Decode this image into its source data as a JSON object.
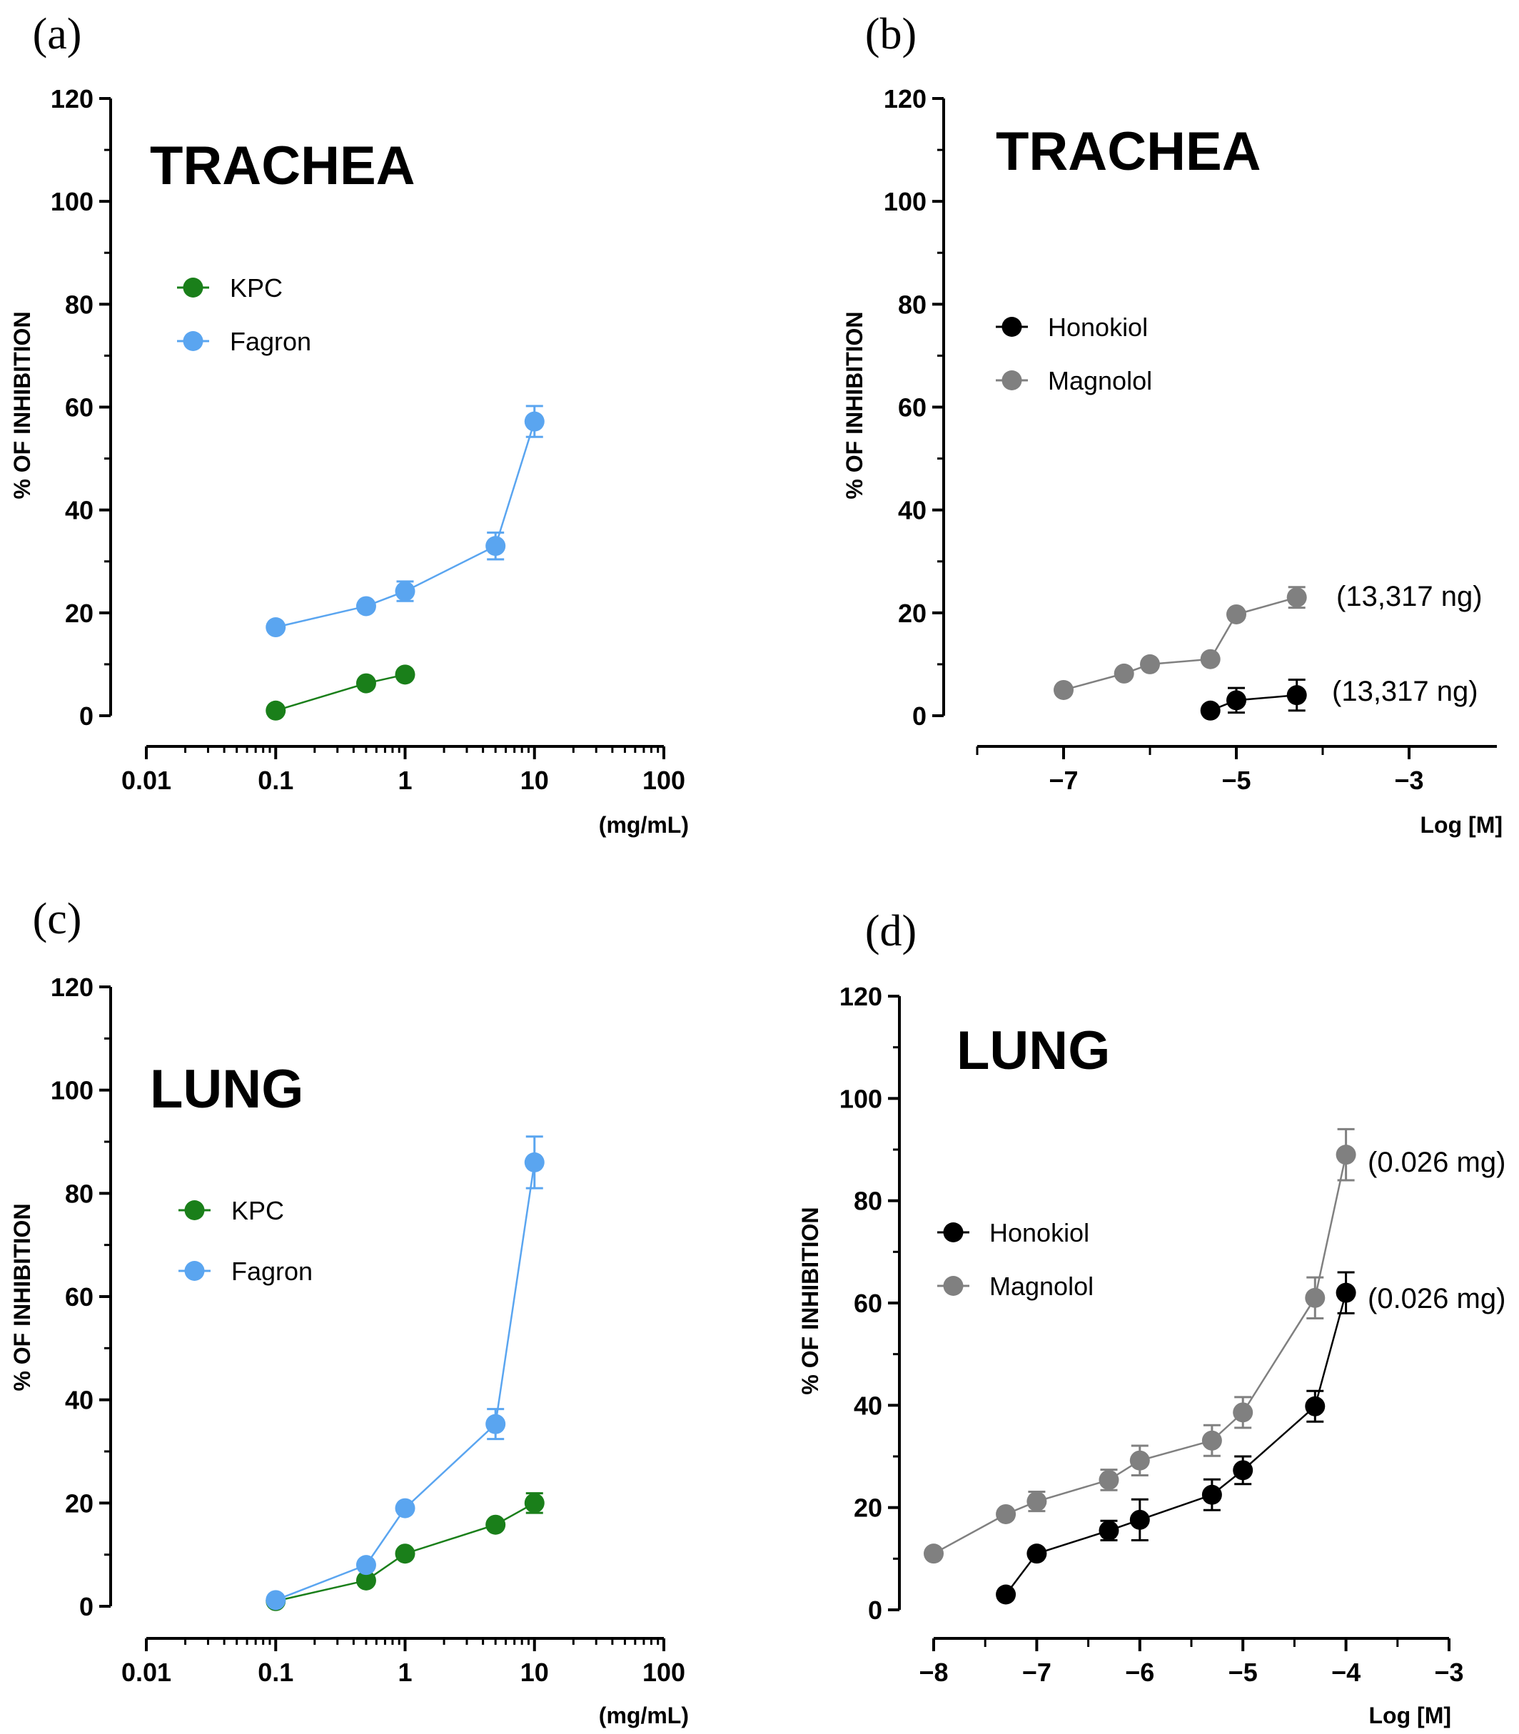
{
  "chart_data": [
    {
      "panel": "(a)",
      "type": "line",
      "title": "TRACHEA",
      "xlabel": "(mg/mL)",
      "ylabel": "% OF INHIBITION",
      "xscale": "log",
      "xlim": [
        0.01,
        100
      ],
      "ylim": [
        0,
        120
      ],
      "xticks": [
        0.01,
        0.1,
        1,
        10,
        100
      ],
      "xtick_labels": [
        "0.01",
        "0.1",
        "1",
        "10",
        "100"
      ],
      "yticks": [
        0,
        20,
        40,
        60,
        80,
        100,
        120
      ],
      "grid": false,
      "legend": "upper-left",
      "series": [
        {
          "name": "KPC",
          "color": "#1a7f1a",
          "x": [
            0.1,
            0.5,
            1
          ],
          "y": [
            1,
            6.3,
            8
          ],
          "err": [
            0,
            0,
            0
          ]
        },
        {
          "name": "Fagron",
          "color": "#5aa5f0",
          "x": [
            0.1,
            0.5,
            1,
            5,
            10
          ],
          "y": [
            17.2,
            21.3,
            24.2,
            33,
            57.2
          ],
          "err": [
            0,
            0,
            1.9,
            2.6,
            3
          ]
        }
      ],
      "annotations": []
    },
    {
      "panel": "(b)",
      "type": "line",
      "title": "TRACHEA",
      "xlabel": "Log [M]",
      "ylabel": "% OF INHIBITION",
      "xscale": "linear",
      "xlim": [
        -8,
        -2.1
      ],
      "ylim": [
        0,
        120
      ],
      "xticks": [
        -7,
        -5,
        -3
      ],
      "xtick_labels": [
        "−7",
        "−5",
        "−3"
      ],
      "yticks": [
        0,
        20,
        40,
        60,
        80,
        100,
        120
      ],
      "grid": false,
      "legend": "upper-left",
      "series": [
        {
          "name": "Honokiol",
          "color": "#000000",
          "x": [
            -5.3,
            -5,
            -4.3
          ],
          "y": [
            1,
            3,
            4
          ],
          "err": [
            0,
            2.4,
            3
          ]
        },
        {
          "name": "Magnolol",
          "color": "#808080",
          "x": [
            -7,
            -6.3,
            -6,
            -5.3,
            -5,
            -4.3
          ],
          "y": [
            5,
            8.2,
            10,
            11,
            19.7,
            23
          ],
          "err": [
            0,
            0,
            0,
            0,
            0,
            2
          ]
        }
      ],
      "annotations": [
        {
          "text": "(13,317 ng)",
          "series": "Magnolol"
        },
        {
          "text": "(13,317 ng)",
          "series": "Honokiol"
        }
      ]
    },
    {
      "panel": "(c)",
      "type": "line",
      "title": "LUNG",
      "xlabel": "(mg/mL)",
      "ylabel": "% OF INHIBITION",
      "xscale": "log",
      "xlim": [
        0.01,
        100
      ],
      "ylim": [
        0,
        120
      ],
      "xticks": [
        0.01,
        0.1,
        1,
        10,
        100
      ],
      "xtick_labels": [
        "0.01",
        "0.1",
        "1",
        "10",
        "100"
      ],
      "yticks": [
        0,
        20,
        40,
        60,
        80,
        100,
        120
      ],
      "grid": false,
      "legend": "upper-left",
      "series": [
        {
          "name": "KPC",
          "color": "#1a7f1a",
          "x": [
            0.1,
            0.5,
            1,
            5,
            10
          ],
          "y": [
            1,
            5,
            10.2,
            15.8,
            20
          ],
          "err": [
            0,
            0,
            0,
            0,
            1.9
          ]
        },
        {
          "name": "Fagron",
          "color": "#5aa5f0",
          "x": [
            0.1,
            0.5,
            1,
            5,
            10
          ],
          "y": [
            1.2,
            8,
            19,
            35.3,
            86
          ],
          "err": [
            0,
            0,
            0,
            2.9,
            5
          ]
        }
      ],
      "annotations": []
    },
    {
      "panel": "(d)",
      "type": "line",
      "title": "LUNG",
      "xlabel": "Log [M]",
      "ylabel": "% OF INHIBITION",
      "xscale": "linear",
      "xlim": [
        -8,
        -3
      ],
      "ylim": [
        0,
        120
      ],
      "xticks": [
        -8,
        -7,
        -6,
        -5,
        -4,
        -3
      ],
      "xtick_labels": [
        "−8",
        "−7",
        "−6",
        "−5",
        "−4",
        "−3"
      ],
      "yticks": [
        0,
        20,
        40,
        60,
        80,
        100,
        120
      ],
      "grid": false,
      "legend": "center-left",
      "series": [
        {
          "name": "Honokiol",
          "color": "#000000",
          "x": [
            -7.3,
            -7,
            -6.3,
            -6,
            -5.3,
            -5,
            -4.3,
            -4
          ],
          "y": [
            3,
            11,
            15.5,
            17.6,
            22.5,
            27.3,
            39.8,
            62
          ],
          "err": [
            0,
            0,
            1.9,
            4,
            3,
            2.7,
            3,
            4
          ]
        },
        {
          "name": "Magnolol",
          "color": "#808080",
          "x": [
            -8,
            -7.3,
            -7,
            -6.3,
            -6,
            -5.3,
            -5,
            -4.3,
            -4
          ],
          "y": [
            11,
            18.7,
            21.2,
            25.4,
            29.2,
            33.1,
            38.6,
            61,
            89
          ],
          "err": [
            0,
            0,
            1.9,
            2,
            2.9,
            3,
            3,
            4,
            5
          ]
        }
      ],
      "annotations": [
        {
          "text": "(0.026 mg)",
          "series": "Magnolol"
        },
        {
          "text": "(0.026 mg)",
          "series": "Honokiol"
        }
      ]
    }
  ]
}
